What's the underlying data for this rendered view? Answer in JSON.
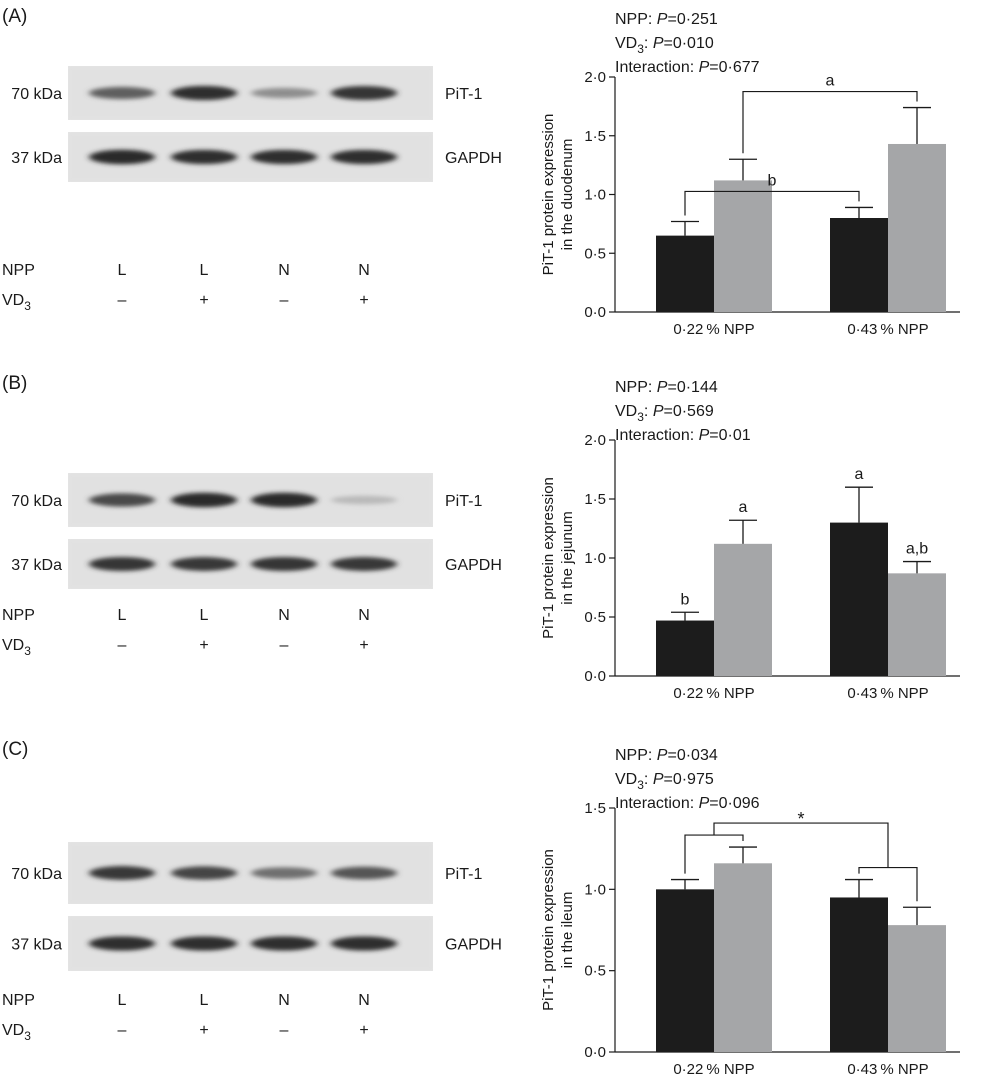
{
  "panels": [
    {
      "letter": "(A)",
      "blot": {
        "markers": [
          {
            "size": "70 kDa",
            "protein": "PiT-1",
            "intensity": [
              0.7,
              0.92,
              0.48,
              0.9
            ]
          },
          {
            "size": "37 kDa",
            "protein": "GAPDH",
            "intensity": [
              0.95,
              0.92,
              0.92,
              0.92
            ]
          }
        ],
        "npp_label": "NPP",
        "npp_values": [
          "L",
          "L",
          "N",
          "N"
        ],
        "vd3_label_main": "VD",
        "vd3_label_sub": "3",
        "vd3_values": [
          "–",
          "+",
          "–",
          "+"
        ]
      },
      "stats": [
        {
          "name": "NPP: ",
          "p": "P",
          "val": "=0·251"
        },
        {
          "name": "VD",
          "sub": "3",
          "name2": ": ",
          "p": "P",
          "val": "=0·010"
        },
        {
          "name": "Interaction: ",
          "p": "P",
          "val": "=0·677"
        }
      ],
      "chart_data": {
        "type": "bar",
        "categories": [
          "0·22 % NPP",
          "0·43 % NPP"
        ],
        "series": [
          {
            "values": [
              0.65,
              0.8
            ],
            "errors": [
              0.12,
              0.09
            ],
            "color": "#1c1c1c"
          },
          {
            "values": [
              1.12,
              1.43
            ],
            "errors": [
              0.18,
              0.31
            ],
            "color": "#a5a6a8"
          }
        ],
        "ylabel_line1": "PiT-1 protein expression",
        "ylabel_line2": "in the duodenum",
        "ylim": [
          0,
          2.0
        ],
        "yticks": [
          {
            "v": 0,
            "t": "0·0"
          },
          {
            "v": 0.5,
            "t": "0·5"
          },
          {
            "v": 1.0,
            "t": "1·0"
          },
          {
            "v": 1.5,
            "t": "1·5"
          },
          {
            "v": 2.0,
            "t": "2·0"
          }
        ],
        "bar_labels": [],
        "brackets": [
          {
            "type": "cross",
            "from": [
              0,
              1
            ],
            "to": [
              1,
              1
            ],
            "label": "a"
          },
          {
            "type": "cross",
            "from": [
              0,
              0
            ],
            "to": [
              1,
              0
            ],
            "label": "b"
          }
        ]
      }
    },
    {
      "letter": "(B)",
      "blot": {
        "markers": [
          {
            "size": "70 kDa",
            "protein": "PiT-1",
            "intensity": [
              0.8,
              0.95,
              0.95,
              0.28
            ]
          },
          {
            "size": "37 kDa",
            "protein": "GAPDH",
            "intensity": [
              0.9,
              0.88,
              0.9,
              0.88
            ]
          }
        ],
        "npp_label": "NPP",
        "npp_values": [
          "L",
          "L",
          "N",
          "N"
        ],
        "vd3_label_main": "VD",
        "vd3_label_sub": "3",
        "vd3_values": [
          "–",
          "+",
          "–",
          "+"
        ]
      },
      "stats": [
        {
          "name": "NPP: ",
          "p": "P",
          "val": "=0·144"
        },
        {
          "name": "VD",
          "sub": "3",
          "name2": ": ",
          "p": "P",
          "val": "=0·569"
        },
        {
          "name": "Interaction: ",
          "p": "P",
          "val": "=0·01"
        }
      ],
      "chart_data": {
        "type": "bar",
        "categories": [
          "0·22 % NPP",
          "0·43 % NPP"
        ],
        "series": [
          {
            "values": [
              0.47,
              1.3
            ],
            "errors": [
              0.07,
              0.3
            ],
            "color": "#1c1c1c"
          },
          {
            "values": [
              1.12,
              0.87
            ],
            "errors": [
              0.2,
              0.1
            ],
            "color": "#a5a6a8"
          }
        ],
        "ylabel_line1": "PiT-1 protein expression",
        "ylabel_line2": "in the jejunum",
        "ylim": [
          0,
          2.0
        ],
        "yticks": [
          {
            "v": 0,
            "t": "0·0"
          },
          {
            "v": 0.5,
            "t": "0·5"
          },
          {
            "v": 1.0,
            "t": "1·0"
          },
          {
            "v": 1.5,
            "t": "1·5"
          },
          {
            "v": 2.0,
            "t": "2·0"
          }
        ],
        "bar_labels": [
          {
            "group": 0,
            "series": 0,
            "label": "b"
          },
          {
            "group": 0,
            "series": 1,
            "label": "a"
          },
          {
            "group": 1,
            "series": 0,
            "label": "a"
          },
          {
            "group": 1,
            "series": 1,
            "label": "a,b"
          }
        ],
        "brackets": []
      }
    },
    {
      "letter": "(C)",
      "blot": {
        "markers": [
          {
            "size": "70 kDa",
            "protein": "PiT-1",
            "intensity": [
              0.88,
              0.82,
              0.62,
              0.75
            ]
          },
          {
            "size": "37 kDa",
            "protein": "GAPDH",
            "intensity": [
              0.92,
              0.92,
              0.92,
              0.92
            ]
          }
        ],
        "npp_label": "NPP",
        "npp_values": [
          "L",
          "L",
          "N",
          "N"
        ],
        "vd3_label_main": "VD",
        "vd3_label_sub": "3",
        "vd3_values": [
          "–",
          "+",
          "–",
          "+"
        ]
      },
      "stats": [
        {
          "name": "NPP: ",
          "p": "P",
          "val": "=0·034"
        },
        {
          "name": "VD",
          "sub": "3",
          "name2": ": ",
          "p": "P",
          "val": "=0·975"
        },
        {
          "name": "Interaction: ",
          "p": "P",
          "val": "=0·096"
        }
      ],
      "chart_data": {
        "type": "bar",
        "categories": [
          "0·22 % NPP",
          "0·43 % NPP"
        ],
        "series": [
          {
            "values": [
              1.0,
              0.95
            ],
            "errors": [
              0.06,
              0.11
            ],
            "color": "#1c1c1c"
          },
          {
            "values": [
              1.16,
              0.78
            ],
            "errors": [
              0.1,
              0.11
            ],
            "color": "#a5a6a8"
          }
        ],
        "ylabel_line1": "PiT-1 protein expression",
        "ylabel_line2": "in the ileum",
        "ylim": [
          0,
          1.5
        ],
        "yticks": [
          {
            "v": 0,
            "t": "0·0"
          },
          {
            "v": 0.5,
            "t": "0·5"
          },
          {
            "v": 1.0,
            "t": "1·0"
          },
          {
            "v": 1.5,
            "t": "1·5"
          }
        ],
        "bar_labels": [],
        "brackets": [
          {
            "type": "group",
            "group": 0
          },
          {
            "type": "group",
            "group": 1
          },
          {
            "type": "between",
            "label": "*"
          }
        ]
      }
    }
  ]
}
